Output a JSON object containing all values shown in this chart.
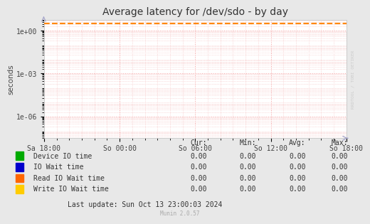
{
  "title": "Average latency for /dev/sdo - by day",
  "ylabel": "seconds",
  "fig_bg_color": "#e8e8e8",
  "plot_bg_color": "#ffffff",
  "grid_color_minor": "#f5c0c0",
  "grid_color_major": "#f5a0a0",
  "border_color": "#cccccc",
  "x_labels": [
    "Sa 18:00",
    "So 00:00",
    "So 06:00",
    "So 12:00",
    "So 18:00"
  ],
  "ylim_log_min": 3e-08,
  "ylim_log_max": 6.0,
  "yticks": [
    1e-06,
    0.001,
    1.0
  ],
  "ytick_labels": [
    "1e-06",
    "1e-03",
    "1e+00"
  ],
  "dashed_line_y": 3.2,
  "dashed_line_color": "#ff8800",
  "arrow_color": "#aaaacc",
  "rrdtool_label": "RRDTOOL / TOBI OETIKER",
  "legend_items": [
    {
      "label": "Device IO time",
      "color": "#00aa00"
    },
    {
      "label": "IO Wait time",
      "color": "#0000cc"
    },
    {
      "label": "Read IO Wait time",
      "color": "#ff6600"
    },
    {
      "label": "Write IO Wait time",
      "color": "#ffcc00"
    }
  ],
  "table_headers": [
    "Cur:",
    "Min:",
    "Avg:",
    "Max:"
  ],
  "table_rows": [
    [
      "0.00",
      "0.00",
      "0.00",
      "0.00"
    ],
    [
      "0.00",
      "0.00",
      "0.00",
      "0.00"
    ],
    [
      "0.00",
      "0.00",
      "0.00",
      "0.00"
    ],
    [
      "0.00",
      "0.00",
      "0.00",
      "0.00"
    ]
  ],
  "last_update": "Last update: Sun Oct 13 23:00:03 2024",
  "watermark": "Munin 2.0.57",
  "title_fontsize": 10,
  "axis_label_fontsize": 7.5,
  "tick_fontsize": 7,
  "legend_fontsize": 7,
  "table_fontsize": 7
}
